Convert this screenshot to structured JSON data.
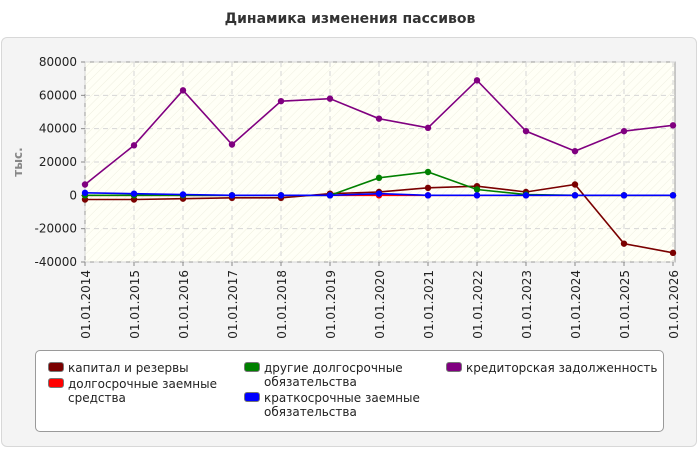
{
  "title": "Динамика изменения пассивов",
  "chart_data": {
    "type": "line",
    "title": "Динамика изменения пассивов",
    "xlabel": "",
    "ylabel": "тыс.",
    "ylim": [
      -40000,
      80000
    ],
    "yticks": [
      80000,
      60000,
      40000,
      20000,
      0,
      -20000,
      -40000
    ],
    "grid": true,
    "legend_position": "bottom",
    "categories": [
      "01.01.2014",
      "01.01.2015",
      "01.01.2016",
      "01.01.2017",
      "01.01.2018",
      "01.01.2019",
      "01.01.2020",
      "01.01.2021",
      "01.01.2022",
      "01.01.2023",
      "01.01.2024",
      "01.01.2025",
      "01.01.2026"
    ],
    "series": [
      {
        "name": "капитал и резервы",
        "color": "#7a0000",
        "values": [
          -2500,
          -2500,
          -2000,
          -1500,
          -1500,
          1000,
          2000,
          4500,
          5500,
          2000,
          6500,
          -29000,
          -34500
        ]
      },
      {
        "name": "долгосрочные заемные средства",
        "color": "#ff0000",
        "values": [
          0,
          0,
          0,
          0,
          0,
          0,
          0,
          0,
          0,
          0,
          0,
          0,
          0
        ]
      },
      {
        "name": "другие долгосрочные обязательства",
        "color": "#008000",
        "values": [
          0,
          0,
          0,
          0,
          0,
          0,
          10500,
          14000,
          3500,
          500,
          0,
          0,
          0
        ]
      },
      {
        "name": "краткосрочные заемные обязательства",
        "color": "#0000ff",
        "values": [
          1500,
          1000,
          500,
          0,
          0,
          0,
          1000,
          0,
          0,
          0,
          0,
          0,
          0
        ]
      },
      {
        "name": "кредиторская задолженность",
        "color": "#800080",
        "values": [
          6500,
          30000,
          63000,
          30500,
          56500,
          58000,
          46000,
          40500,
          69000,
          38500,
          26500,
          38500,
          42000
        ]
      }
    ]
  }
}
